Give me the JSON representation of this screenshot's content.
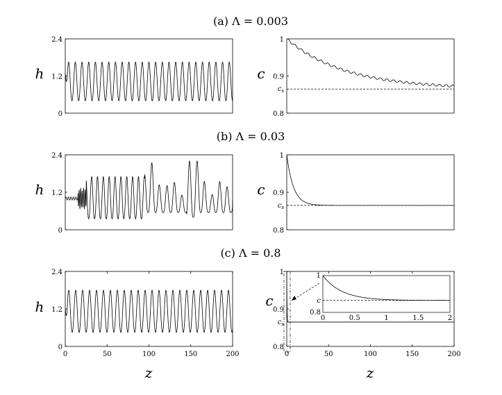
{
  "panel_titles": {
    "a": "(a) Λ = 0.003",
    "b": "(b) Λ = 0.03",
    "c": "(c) Λ = 0.8"
  },
  "labels": {
    "h_axis": "h",
    "c_axis": "c",
    "z_axis": "z",
    "cs": "c",
    "cs_sub": "s"
  },
  "chart_data": [
    {
      "id": "a-h",
      "type": "line",
      "ylabel": "h",
      "xlim": [
        0,
        200
      ],
      "ylim": [
        0,
        2.4
      ],
      "yticks": [
        "0",
        "1.2",
        "2.4"
      ],
      "xticks": [],
      "series": [
        {
          "kind": "periodic",
          "period": 8.0,
          "min": 0.4,
          "max": 1.65,
          "start": 1.3
        }
      ]
    },
    {
      "id": "a-c",
      "type": "line",
      "ylabel": "c",
      "xlim": [
        0,
        200
      ],
      "ylim": [
        0.8,
        1.0
      ],
      "yticks": [
        "0.8",
        "0.9",
        "1"
      ],
      "xticks": [],
      "cs": 0.865,
      "series": [
        {
          "kind": "decay",
          "start": 1.0,
          "end": 0.865,
          "tau": 70
        }
      ]
    },
    {
      "id": "b-h",
      "type": "line",
      "ylabel": "h",
      "xlim": [
        0,
        200
      ],
      "ylim": [
        0,
        2.4
      ],
      "yticks": [
        "0",
        "1.2",
        "2.4"
      ],
      "xticks": [],
      "series": [
        {
          "kind": "irregular",
          "base": 1.0
        }
      ]
    },
    {
      "id": "b-c",
      "type": "line",
      "ylabel": "c",
      "xlim": [
        0,
        200
      ],
      "ylim": [
        0.8,
        1.0
      ],
      "yticks": [
        "0.8",
        "0.9",
        "1"
      ],
      "xticks": [],
      "cs": 0.865,
      "series": [
        {
          "kind": "decay",
          "start": 1.0,
          "end": 0.865,
          "tau": 8
        }
      ]
    },
    {
      "id": "c-h",
      "type": "line",
      "ylabel": "h",
      "xlim": [
        0,
        200
      ],
      "ylim": [
        0,
        2.4
      ],
      "yticks": [
        "0",
        "1.2",
        "2.4"
      ],
      "xticks": [
        "0",
        "50",
        "100",
        "150",
        "200"
      ],
      "xlabel": "z",
      "series": [
        {
          "kind": "periodic",
          "period": 8.3,
          "min": 0.45,
          "max": 1.8,
          "start": 1.2
        }
      ]
    },
    {
      "id": "c-c",
      "type": "line",
      "ylabel": "c",
      "xlim": [
        0,
        200
      ],
      "ylim": [
        0.8,
        1.0
      ],
      "yticks": [
        "0.8",
        "0.9",
        "1"
      ],
      "xticks": [
        "0",
        "50",
        "100",
        "150",
        "200"
      ],
      "xlabel": "z",
      "cs": 0.865,
      "series": [
        {
          "kind": "step",
          "start": 1.0,
          "end": 0.865,
          "tau": 0.3
        }
      ],
      "inset": {
        "xlim": [
          0,
          2
        ],
        "ylim": [
          0.8,
          1.0
        ],
        "xticks": [
          "0",
          "0.5",
          "1",
          "1.5",
          "2"
        ],
        "yticks": [
          "0.8",
          "1"
        ],
        "series": [
          {
            "kind": "decay",
            "start": 1.0,
            "end": 0.865,
            "tau": 0.3
          }
        ]
      }
    }
  ]
}
